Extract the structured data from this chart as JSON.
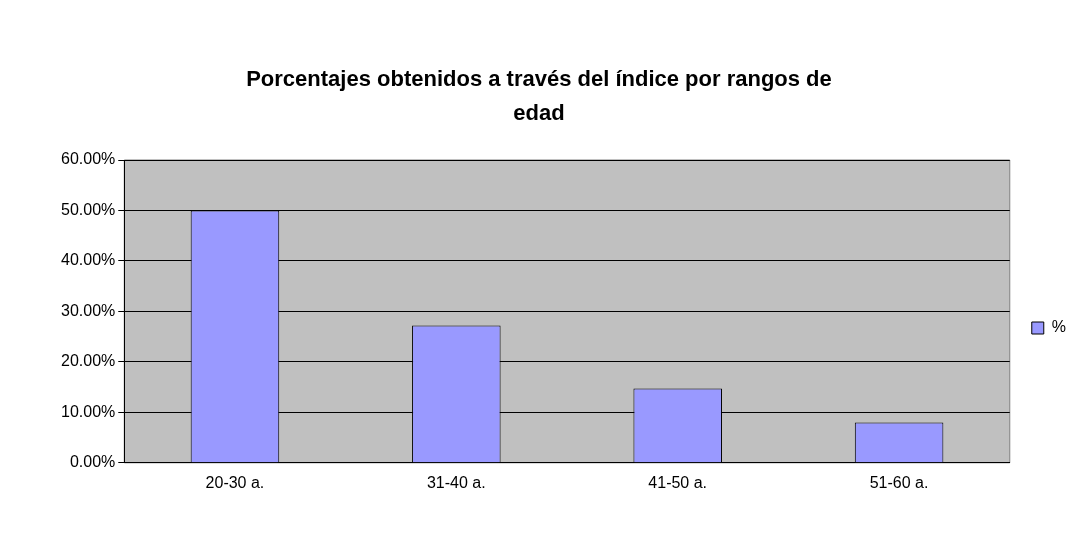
{
  "chart_data": {
    "type": "bar",
    "title": "Porcentajes obtenidos a través del índice por rangos de edad",
    "categories": [
      "20-30 a.",
      "31-40 a.",
      "41-50 a.",
      "51-60 a."
    ],
    "series": [
      {
        "name": "%",
        "color": "#9999ff",
        "values": [
          50,
          27.2,
          14.7,
          8.0
        ]
      }
    ],
    "ylim": [
      0,
      60
    ],
    "yticks": [
      {
        "value": 0,
        "label": "0.00%"
      },
      {
        "value": 10,
        "label": "10.00%"
      },
      {
        "value": 20,
        "label": "20.00%"
      },
      {
        "value": 30,
        "label": "30.00%"
      },
      {
        "value": 40,
        "label": "40.00%"
      },
      {
        "value": 50,
        "label": "50.00%"
      },
      {
        "value": 60,
        "label": "60.00%"
      }
    ],
    "grid": "y",
    "legend": "right"
  }
}
